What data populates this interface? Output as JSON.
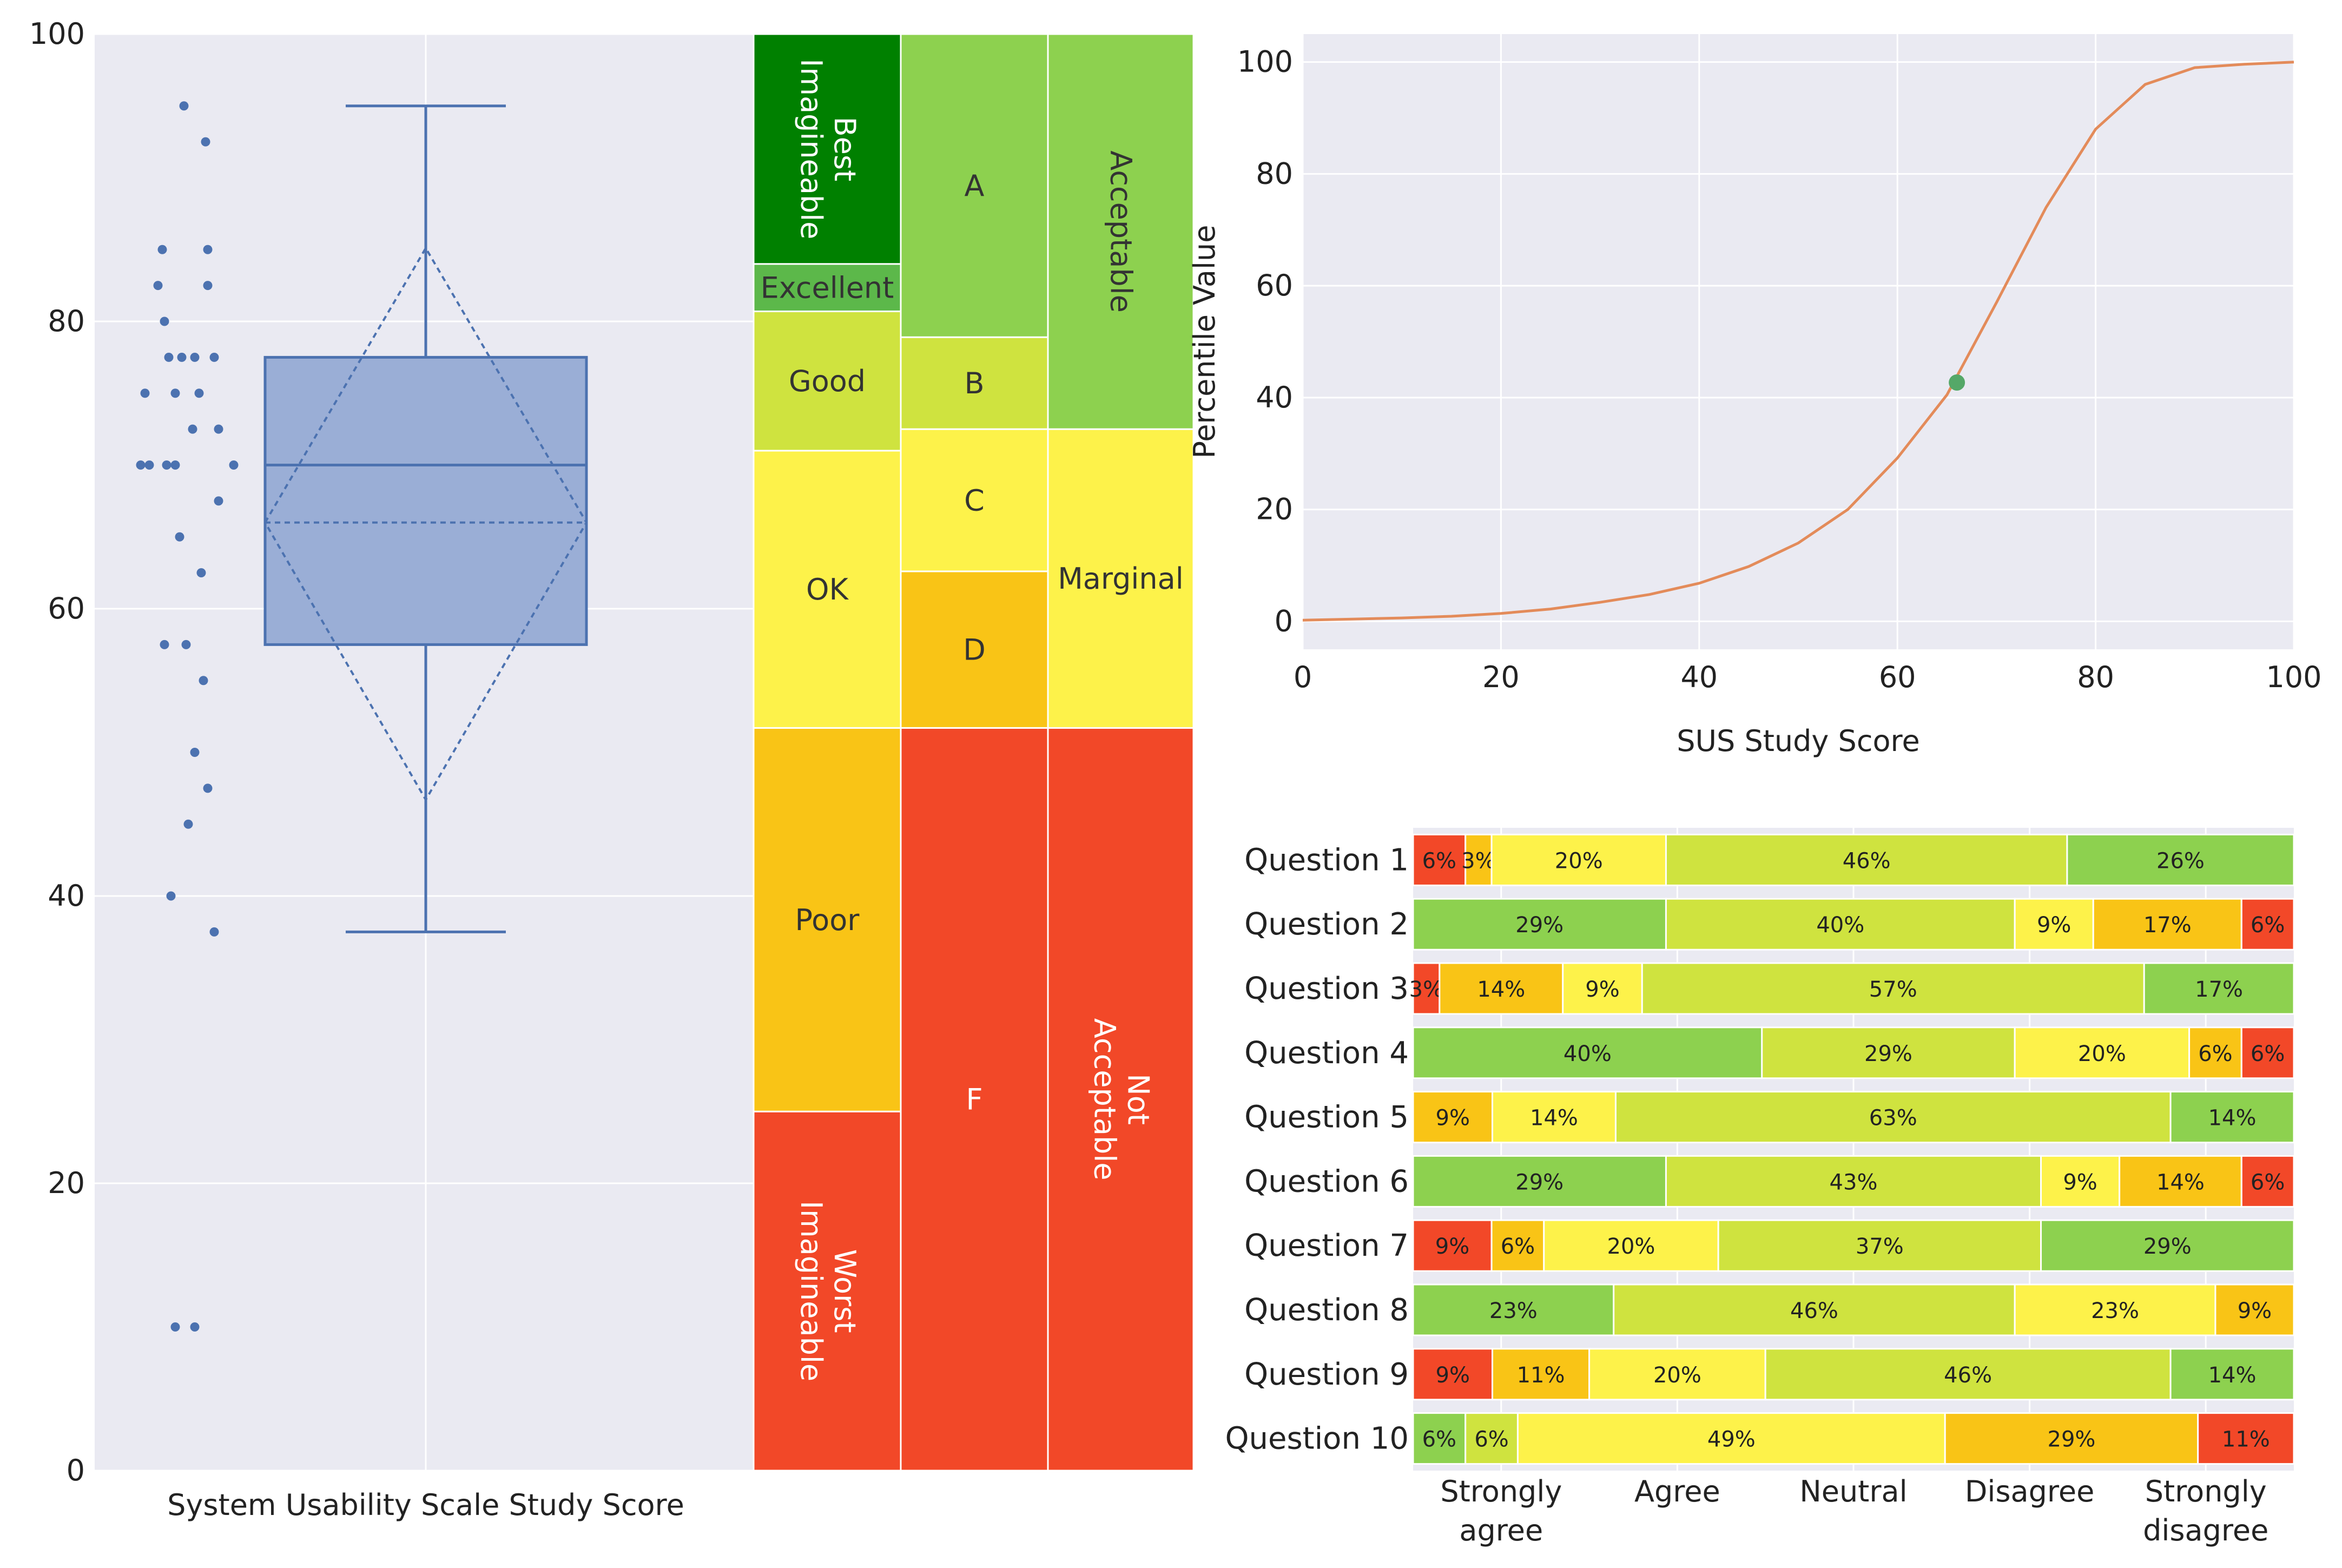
{
  "colors": {
    "panel_bg": "#eaeaf2",
    "grid": "#ffffff",
    "box": "#4c72b0",
    "box_fill": "#9aaed6",
    "curve": "#e38b5a",
    "marker": "#55a868",
    "best": "#008000",
    "excellent": "#5cb84a",
    "lightgreen": "#8dd14f",
    "yellowgreen": "#cfe33f",
    "yellow": "#fdf24a",
    "orange": "#f9c416",
    "red": "#f24828",
    "text": "#222222"
  },
  "chart_data": [
    {
      "id": "boxplot",
      "type": "box",
      "xlabel": "System Usability Scale Study Score",
      "ylim": [
        0,
        100
      ],
      "yticks": [
        0,
        20,
        40,
        60,
        80,
        100
      ],
      "points": [
        {
          "y": 95,
          "j": 0.25
        },
        {
          "y": 92.5,
          "j": 0.75
        },
        {
          "y": 85,
          "j": -0.25
        },
        {
          "y": 85,
          "j": 0.8
        },
        {
          "y": 82.5,
          "j": -0.35
        },
        {
          "y": 82.5,
          "j": 0.8
        },
        {
          "y": 80,
          "j": -0.2
        },
        {
          "y": 77.5,
          "j": -0.1
        },
        {
          "y": 77.5,
          "j": 0.2
        },
        {
          "y": 77.5,
          "j": 0.5
        },
        {
          "y": 77.5,
          "j": 0.95
        },
        {
          "y": 75,
          "j": -0.65
        },
        {
          "y": 75,
          "j": 0.05
        },
        {
          "y": 75,
          "j": 0.6
        },
        {
          "y": 72.5,
          "j": 0.45
        },
        {
          "y": 72.5,
          "j": 1.05
        },
        {
          "y": 70,
          "j": -0.75
        },
        {
          "y": 70,
          "j": -0.55
        },
        {
          "y": 70,
          "j": -0.15
        },
        {
          "y": 70,
          "j": 0.05
        },
        {
          "y": 70,
          "j": 1.4
        },
        {
          "y": 67.5,
          "j": 1.05
        },
        {
          "y": 65,
          "j": 0.15
        },
        {
          "y": 62.5,
          "j": 0.65
        },
        {
          "y": 57.5,
          "j": -0.2
        },
        {
          "y": 57.5,
          "j": 0.3
        },
        {
          "y": 55,
          "j": 0.7
        },
        {
          "y": 50,
          "j": 0.5
        },
        {
          "y": 47.5,
          "j": 0.8
        },
        {
          "y": 45,
          "j": 0.35
        },
        {
          "y": 40,
          "j": -0.05
        },
        {
          "y": 37.5,
          "j": 0.95
        },
        {
          "y": 10,
          "j": 0.05
        },
        {
          "y": 10,
          "j": 0.5
        }
      ],
      "q1": 57.5,
      "median": 70,
      "q3": 77.5,
      "whisker_low": 37.5,
      "whisker_high": 95,
      "mean": 66,
      "ci_low": 46.7,
      "ci_high": 85.1
    },
    {
      "id": "sus-scale",
      "type": "table",
      "columns": [
        {
          "name": "adjective",
          "bands": [
            {
              "label": "Worst Imagineable",
              "low": 0,
              "high": 25,
              "color": "red",
              "rotate": 90
            },
            {
              "label": "Poor",
              "low": 25,
              "high": 51.7,
              "color": "orange",
              "rotate": 0
            },
            {
              "label": "OK",
              "low": 51.7,
              "high": 71,
              "color": "yellow",
              "rotate": 0
            },
            {
              "label": "Good",
              "low": 71,
              "high": 80.7,
              "color": "yellowgreen",
              "rotate": 0
            },
            {
              "label": "Excellent",
              "low": 80.7,
              "high": 84,
              "color": "excellent",
              "rotate": 0
            },
            {
              "label": "Best Imagineable",
              "low": 84,
              "high": 100,
              "color": "best",
              "rotate": 90
            }
          ]
        },
        {
          "name": "grade",
          "bands": [
            {
              "label": "F",
              "low": 0,
              "high": 51.7,
              "color": "red",
              "rotate": 0
            },
            {
              "label": "D",
              "low": 51.7,
              "high": 62.6,
              "color": "orange",
              "rotate": 0
            },
            {
              "label": "C",
              "low": 62.6,
              "high": 72.5,
              "color": "yellow",
              "rotate": 0
            },
            {
              "label": "B",
              "low": 72.5,
              "high": 78.9,
              "color": "yellowgreen",
              "rotate": 0
            },
            {
              "label": "A",
              "low": 78.9,
              "high": 100,
              "color": "lightgreen",
              "rotate": 0
            }
          ]
        },
        {
          "name": "acceptability",
          "bands": [
            {
              "label": "Not Acceptable",
              "low": 0,
              "high": 51.7,
              "color": "red",
              "rotate": 90
            },
            {
              "label": "Marginal",
              "low": 51.7,
              "high": 72.5,
              "color": "yellow",
              "rotate": 0
            },
            {
              "label": "Acceptable",
              "low": 72.5,
              "high": 100,
              "color": "lightgreen",
              "rotate": 90
            }
          ]
        }
      ]
    },
    {
      "id": "percentile",
      "type": "line",
      "xlabel": "SUS Study Score",
      "ylabel": "Percentile Value",
      "xlim": [
        0,
        100
      ],
      "ylim": [
        0,
        100
      ],
      "xticks": [
        0,
        20,
        40,
        60,
        80,
        100
      ],
      "yticks": [
        0,
        20,
        40,
        60,
        80,
        100
      ],
      "x": [
        0,
        5,
        10,
        15,
        20,
        25,
        30,
        35,
        40,
        45,
        50,
        55,
        60,
        65,
        70,
        75,
        80,
        85,
        90,
        95,
        100
      ],
      "y": [
        0.2,
        0.4,
        0.6,
        0.9,
        1.4,
        2.2,
        3.4,
        4.8,
        6.8,
        9.8,
        14.0,
        20.0,
        29.2,
        40.5,
        57.0,
        74.0,
        88.0,
        96.0,
        99.0,
        99.6,
        100
      ],
      "marker": {
        "x": 66,
        "y": 42.7
      }
    },
    {
      "id": "likert",
      "type": "bar",
      "orientation": "horizontal-stacked",
      "categories": [
        "Question 1",
        "Question 2",
        "Question 3",
        "Question 4",
        "Question 5",
        "Question 6",
        "Question 7",
        "Question 8",
        "Question 9",
        "Question 10"
      ],
      "legend": [
        "Strongly agree",
        "Agree",
        "Neutral",
        "Disagree",
        "Strongly disagree"
      ],
      "rows": [
        [
          {
            "v": 6,
            "c": "red"
          },
          {
            "v": 3,
            "c": "orange"
          },
          {
            "v": 20,
            "c": "yellow"
          },
          {
            "v": 46,
            "c": "yellowgreen"
          },
          {
            "v": 26,
            "c": "lightgreen"
          }
        ],
        [
          {
            "v": 29,
            "c": "lightgreen"
          },
          {
            "v": 40,
            "c": "yellowgreen"
          },
          {
            "v": 9,
            "c": "yellow"
          },
          {
            "v": 17,
            "c": "orange"
          },
          {
            "v": 6,
            "c": "red"
          }
        ],
        [
          {
            "v": 3,
            "c": "red"
          },
          {
            "v": 14,
            "c": "orange"
          },
          {
            "v": 9,
            "c": "yellow"
          },
          {
            "v": 57,
            "c": "yellowgreen"
          },
          {
            "v": 17,
            "c": "lightgreen"
          }
        ],
        [
          {
            "v": 40,
            "c": "lightgreen"
          },
          {
            "v": 29,
            "c": "yellowgreen"
          },
          {
            "v": 20,
            "c": "yellow"
          },
          {
            "v": 6,
            "c": "orange"
          },
          {
            "v": 6,
            "c": "red"
          }
        ],
        [
          {
            "v": 9,
            "c": "orange"
          },
          {
            "v": 14,
            "c": "yellow"
          },
          {
            "v": 63,
            "c": "yellowgreen"
          },
          {
            "v": 14,
            "c": "lightgreen"
          }
        ],
        [
          {
            "v": 29,
            "c": "lightgreen"
          },
          {
            "v": 43,
            "c": "yellowgreen"
          },
          {
            "v": 9,
            "c": "yellow"
          },
          {
            "v": 14,
            "c": "orange"
          },
          {
            "v": 6,
            "c": "red"
          }
        ],
        [
          {
            "v": 9,
            "c": "red"
          },
          {
            "v": 6,
            "c": "orange"
          },
          {
            "v": 20,
            "c": "yellow"
          },
          {
            "v": 37,
            "c": "yellowgreen"
          },
          {
            "v": 29,
            "c": "lightgreen"
          }
        ],
        [
          {
            "v": 23,
            "c": "lightgreen"
          },
          {
            "v": 46,
            "c": "yellowgreen"
          },
          {
            "v": 23,
            "c": "yellow"
          },
          {
            "v": 9,
            "c": "orange"
          }
        ],
        [
          {
            "v": 9,
            "c": "red"
          },
          {
            "v": 11,
            "c": "orange"
          },
          {
            "v": 20,
            "c": "yellow"
          },
          {
            "v": 46,
            "c": "yellowgreen"
          },
          {
            "v": 14,
            "c": "lightgreen"
          }
        ],
        [
          {
            "v": 6,
            "c": "lightgreen"
          },
          {
            "v": 6,
            "c": "yellowgreen"
          },
          {
            "v": 49,
            "c": "yellow"
          },
          {
            "v": 29,
            "c": "orange"
          },
          {
            "v": 11,
            "c": "red"
          }
        ]
      ]
    }
  ]
}
